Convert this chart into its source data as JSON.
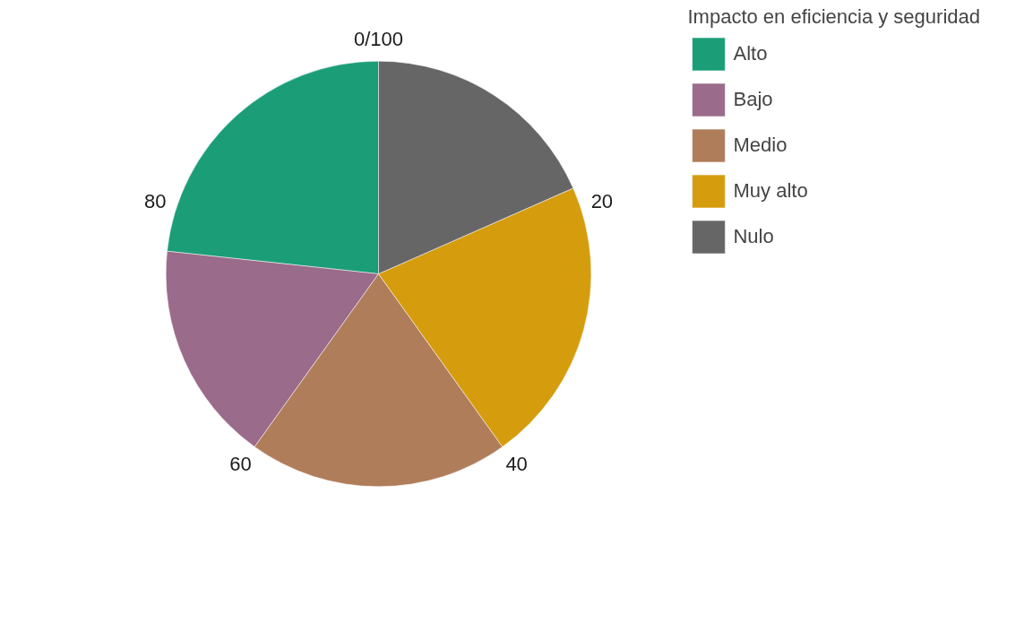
{
  "chart_data": {
    "type": "pie",
    "legend_title": "Impacto en eficiencia y seguridad",
    "categories": [
      "Alto",
      "Bajo",
      "Medio",
      "Muy alto",
      "Nulo"
    ],
    "values": [
      23.3,
      16.8,
      19.8,
      21.7,
      18.4
    ],
    "colors": [
      "#1b9e77",
      "#9a6b8a",
      "#b07d5b",
      "#d59c0e",
      "#666666"
    ],
    "annotations": [
      "0/100",
      "20",
      "40",
      "60",
      "80"
    ],
    "legend": "top right"
  }
}
